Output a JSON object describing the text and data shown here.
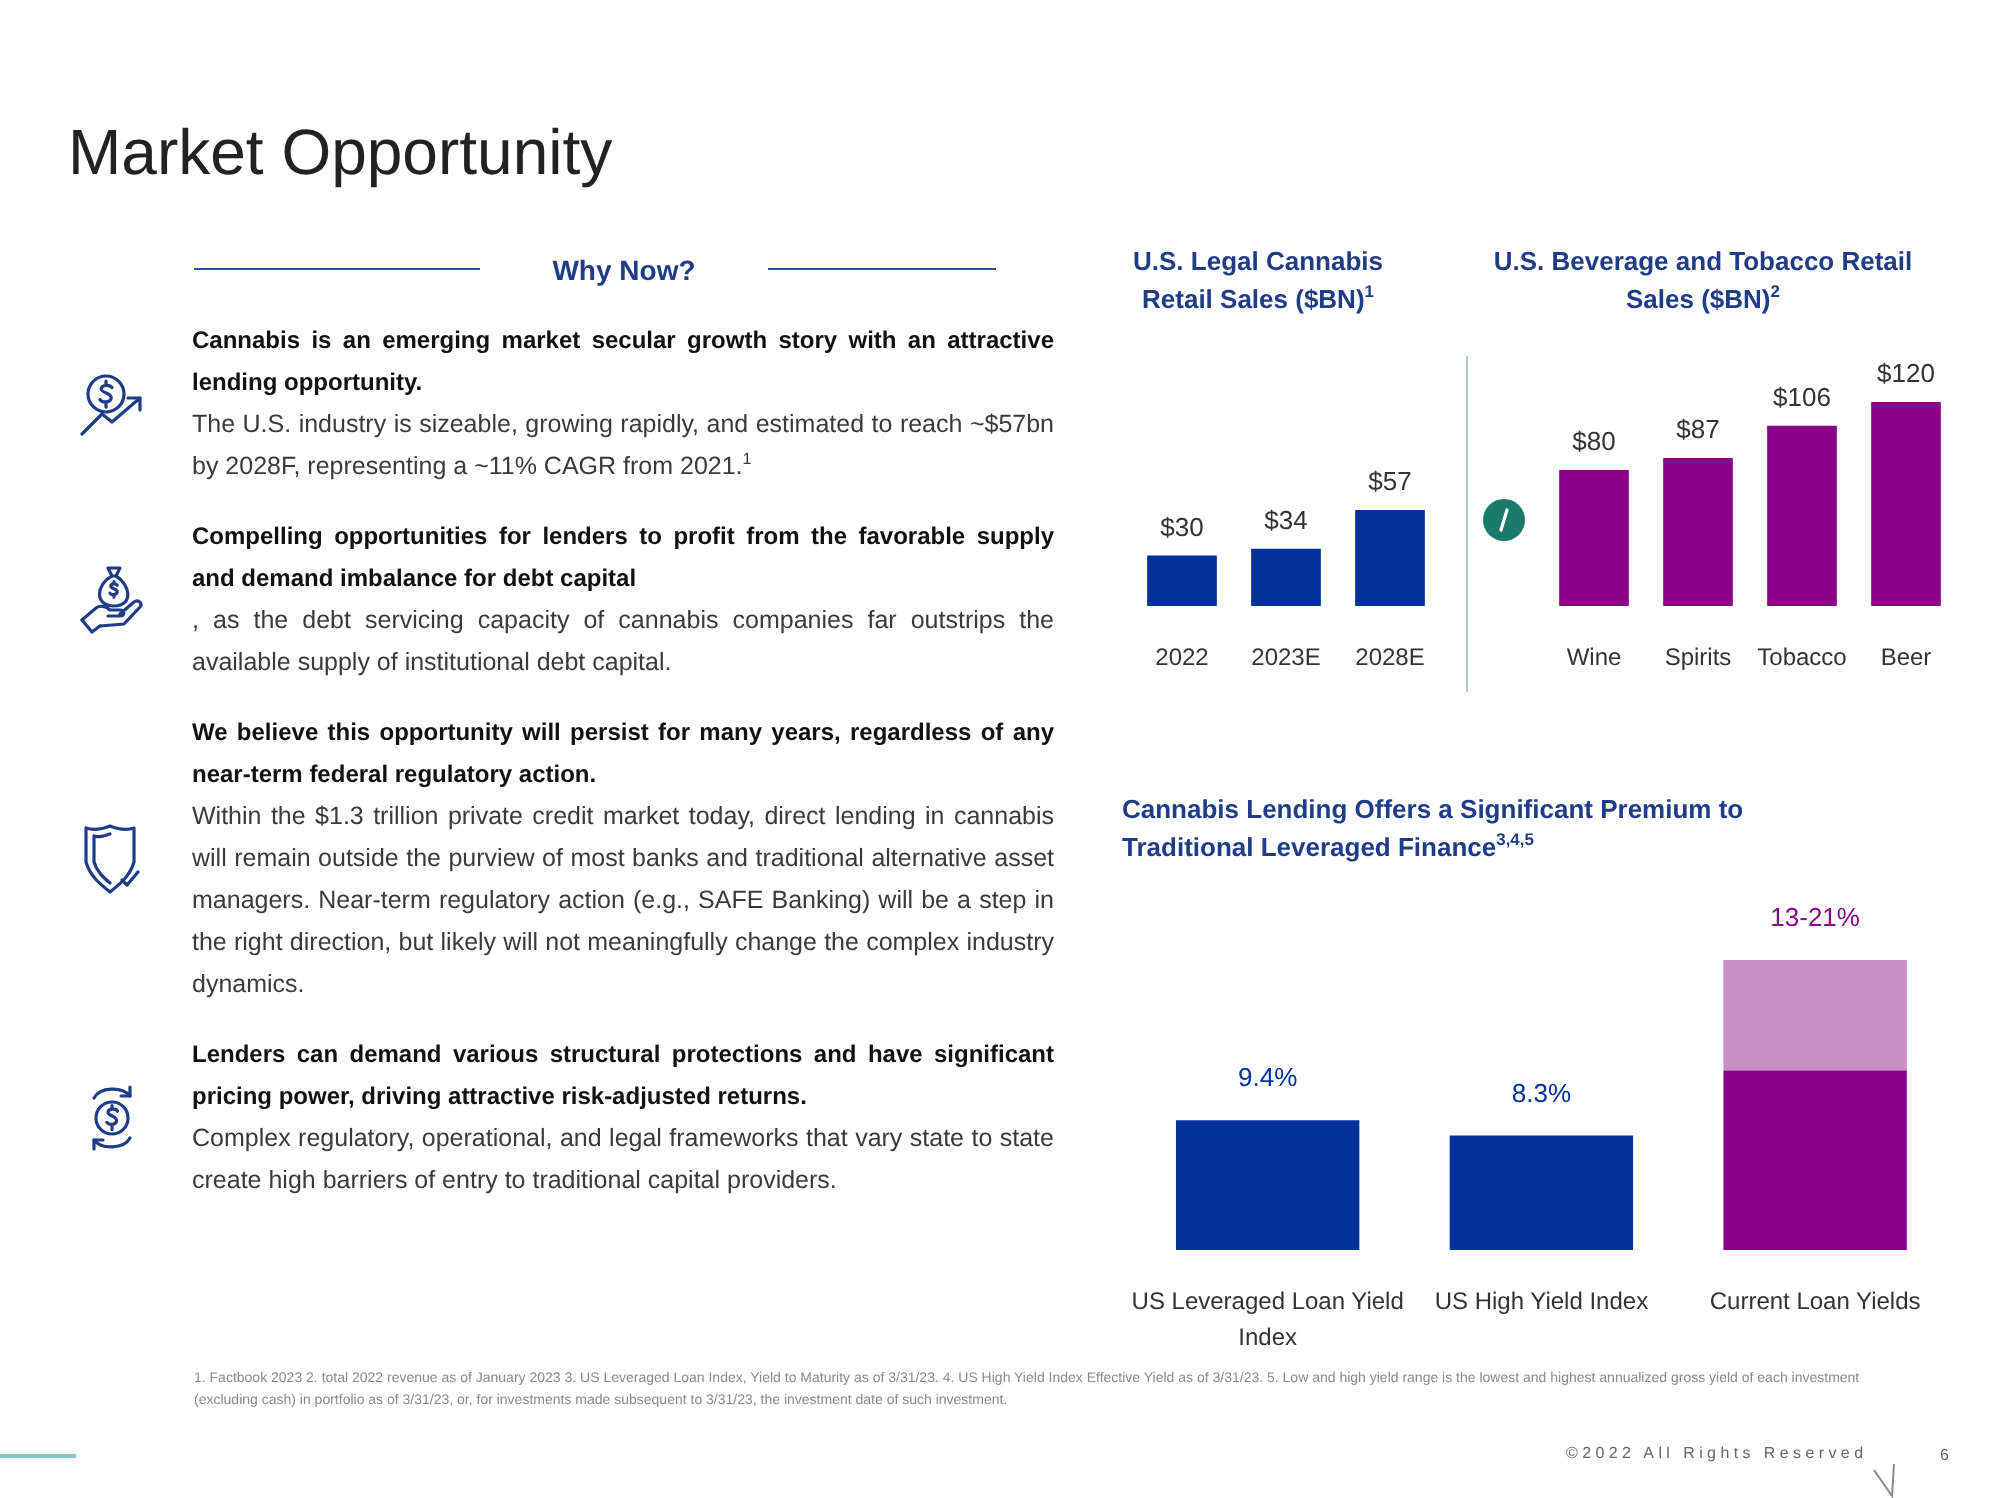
{
  "chart_data": [
    {
      "type": "other",
      "title": "Market Opportunity",
      "subtitle": "Why Now?",
      "annotations": [
        "Cannabis is an emerging market secular growth story with an attractive lending opportunity.",
        "  The U.S. industry is sizeable, growing rapidly, and estimated to reach ~$57bn by 2028F, representing a ~11% CAGR from 2021.$^{1}$",
        "Compelling opportunities for lenders to profit from the favorable supply and demand imbalance for debt capital",
        ", as the debt servicing capacity of cannabis companies far outstrips the available supply of institutional debt capital.",
        "We believe this opportunity will persist for many years, regardless of any near-term federal regulatory action.",
        "  Within the $1.3 trillion private credit market today, direct lending in cannabis will remain outside the purview of most banks and traditional alternative asset managers. Near-term regulatory action (e.g., SAFE Banking) will be a step in the right direction, but likely will not meaningfully change the complex industry dynamics.",
        "Lenders can demand various structural protections and have significant pricing power, driving attractive risk-adjusted returns.",
        " Complex regulatory, operational, and legal frameworks that vary state to state create high barriers of entry to traditional capital providers.",
        "1. Factbook 2023 2. total 2022 revenue as of January 2023  3. US Leveraged Loan Index, Yield to Maturity as of 3/31/23. 4. US High Yield Index Effective Yield as of 3/31/23.  5. Low and high yield range is the lowest and highest annualized gross yield of each investment (excluding cash) in portfolio as of 3/31/23, or, for investments made subsequent to 3/31/23, the investment date of such investment.",
        "©2022 All Rights Reserved",
        "6"
      ]
    },
    {
      "type": "bar",
      "title": "U.S. Legal Cannabis Retail Sales ($BN)$^{1}$",
      "categories": [
        "2022",
        "2023E",
        "2028E"
      ],
      "values": [
        30,
        34,
        57
      ],
      "value_labels": [
        "$30",
        "$34",
        "$57"
      ],
      "color": "#00309a",
      "tick_labels": "x"
    },
    {
      "type": "bar",
      "title": "U.S. Beverage and Tobacco Retail Sales ($BN)$^{2}$",
      "categories": [
        "Wine",
        "Spirits",
        "Tobacco",
        "Beer"
      ],
      "values": [
        80,
        87,
        106,
        120
      ],
      "value_labels": [
        "$80",
        "$87",
        "$106",
        "$120"
      ],
      "color": "#8b0089",
      "tick_labels": "x"
    },
    {
      "type": "bar",
      "title": "Cannabis Lending Offers a Significant Premium to Traditional Leveraged Finance$^{3,4,5}$",
      "categories": [
        "US Leveraged Loan Yield Index",
        "US High Yield Index",
        "Current Loan Yields"
      ],
      "stacked": true,
      "tick_labels": "x",
      "series": [
        {
          "colors": [
            "#00309a",
            "#00309a",
            "#8b0089"
          ],
          "values": [
            9.4,
            8.3,
            13
          ],
          "value_labels": [
            "9.4%",
            "8.3%",
            null
          ]
        },
        {
          "color": "#c58fc5",
          "values": [
            null,
            null,
            8
          ]
        }
      ],
      "annotations": [
        {
          "text": "13-21%",
          "x": "Current Loan Yields",
          "y": 21
        }
      ]
    }
  ]
}
